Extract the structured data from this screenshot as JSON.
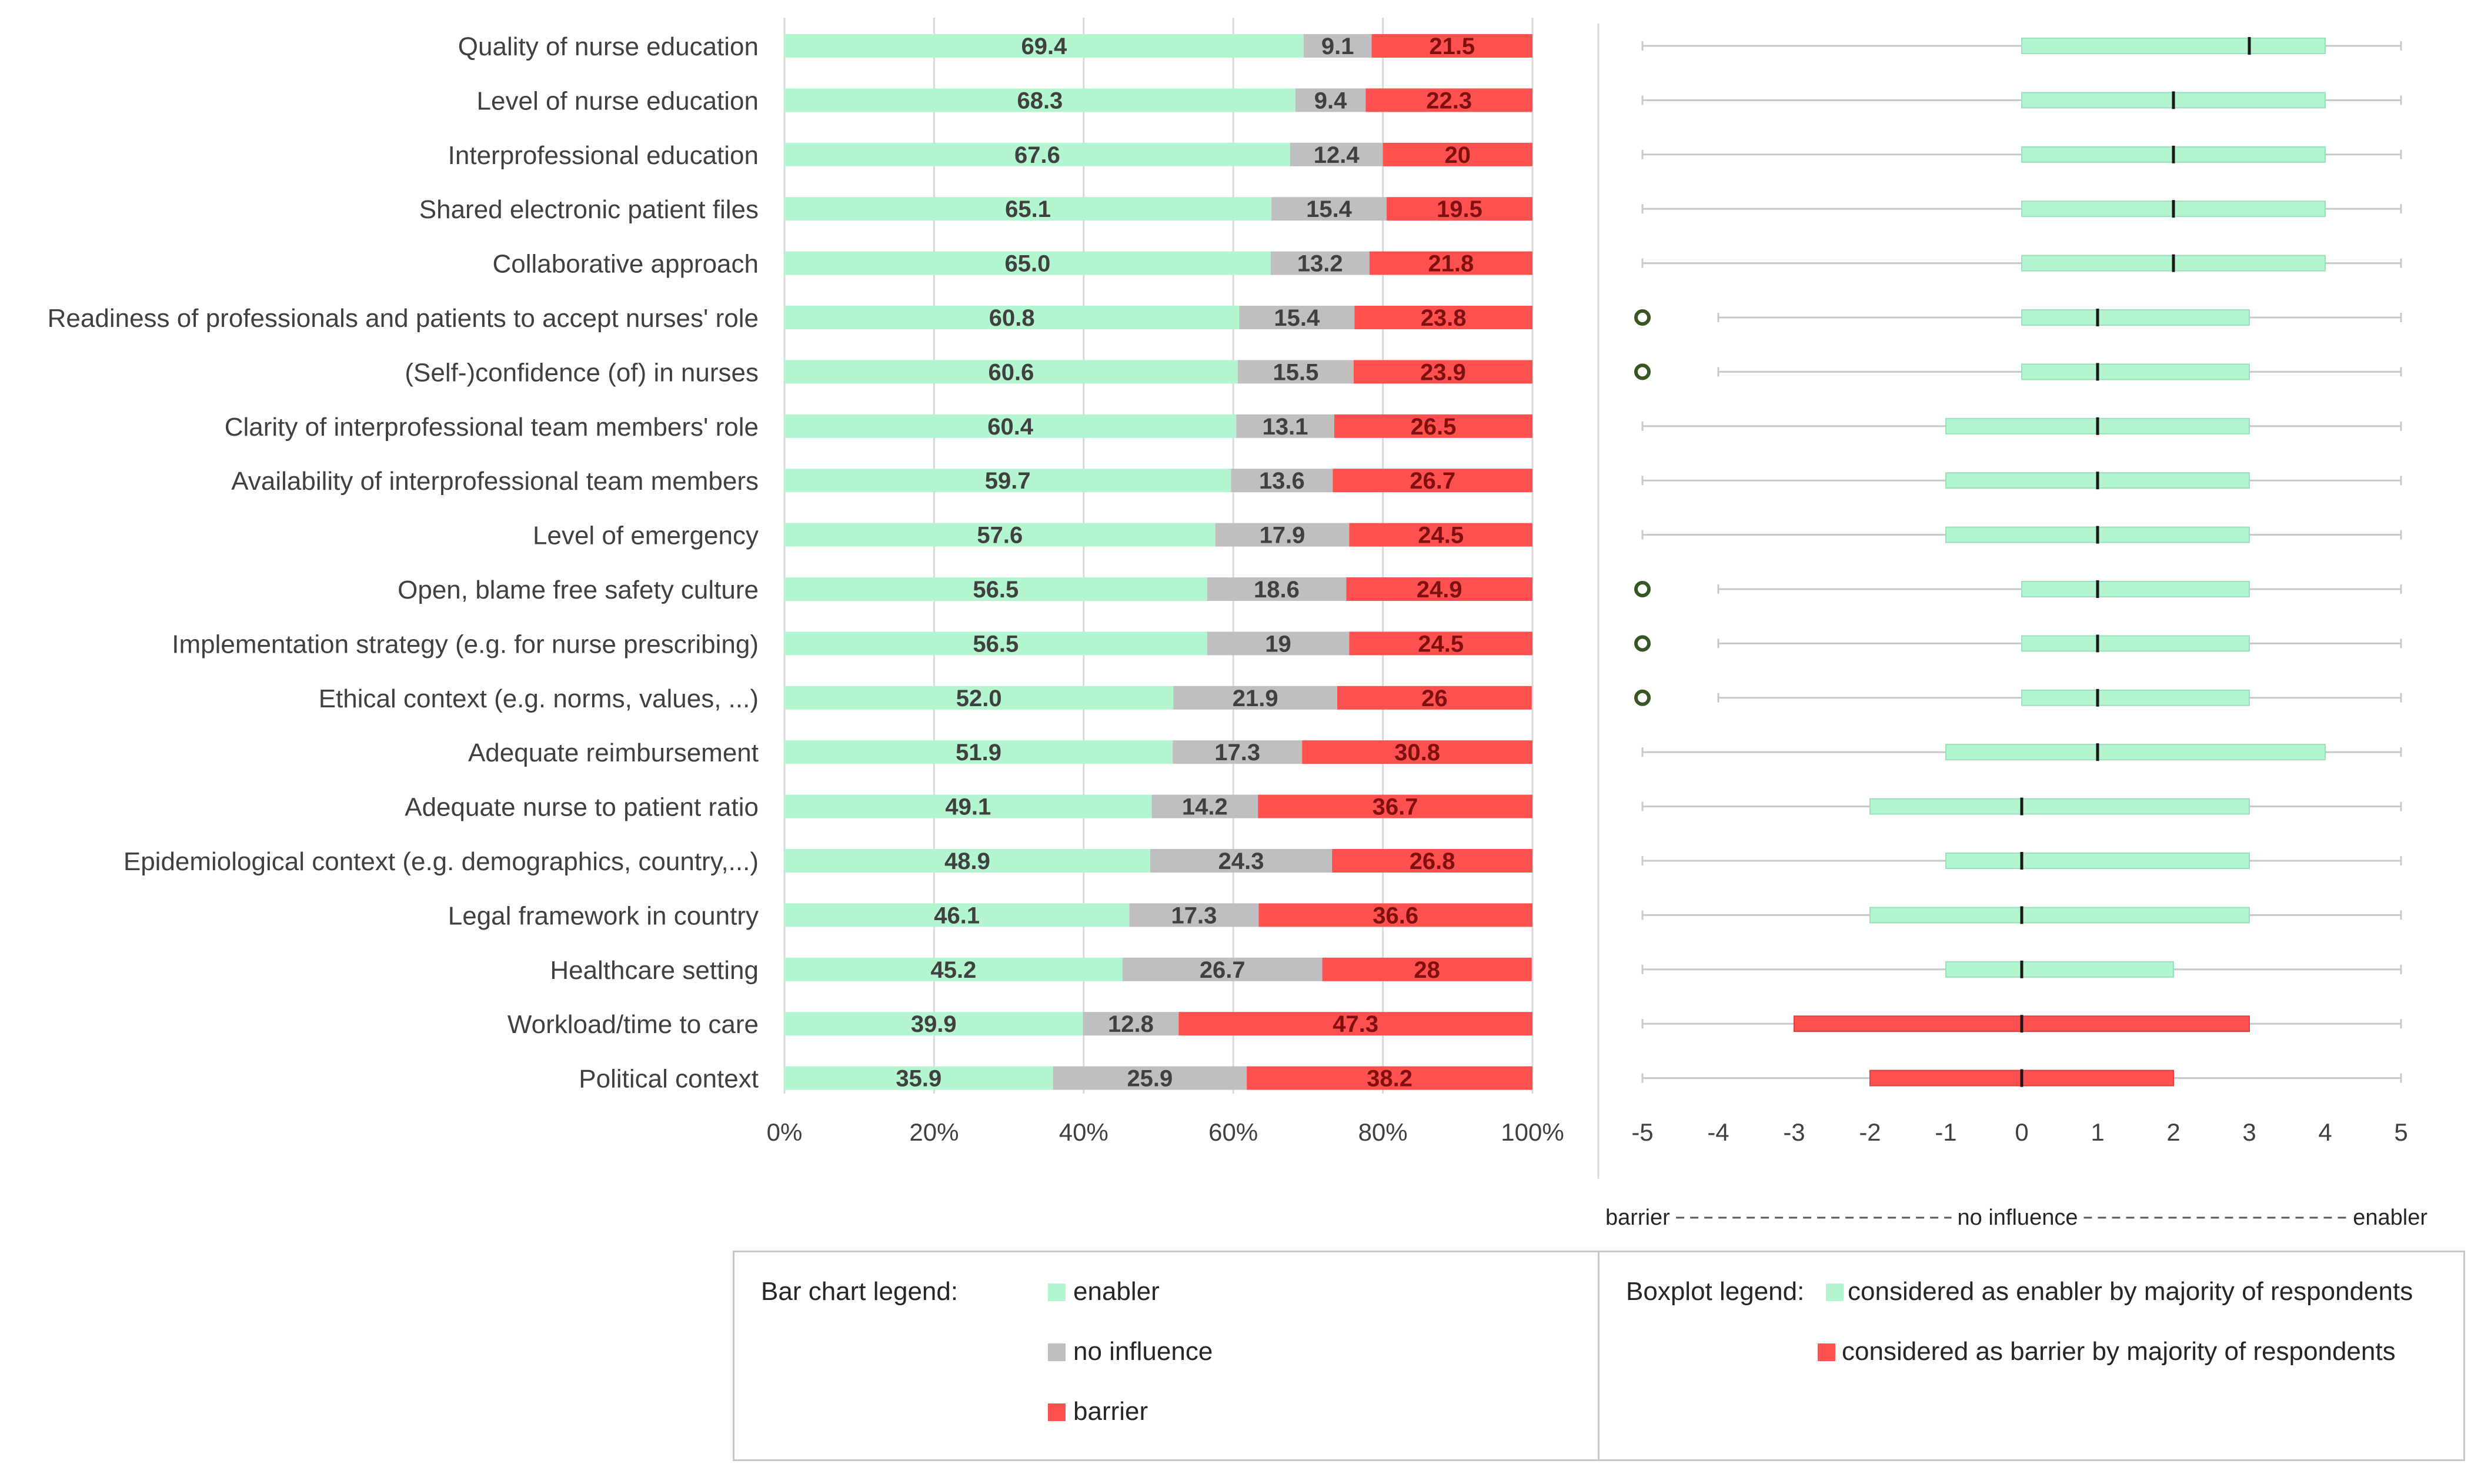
{
  "chart_data": [
    {
      "type": "bar",
      "stacked": true,
      "orientation": "horizontal",
      "categories": [
        "Quality of nurse education",
        "Level of nurse education",
        "Interprofessional education",
        "Shared electronic patient files",
        "Collaborative approach",
        "Readiness of professionals and patients to accept nurses' role",
        "(Self-)confidence (of) in nurses",
        "Clarity of interprofessional team members' role",
        "Availability of interprofessional team members",
        "Level of emergency",
        "Open, blame free safety culture",
        "Implementation strategy (e.g. for nurse prescribing)",
        "Ethical context (e.g. norms, values, ...)",
        "Adequate reimbursement",
        "Adequate nurse to patient ratio",
        "Epidemiological context (e.g. demographics, country,...)",
        "Legal framework in country",
        "Healthcare setting",
        "Workload/time to care",
        "Political context"
      ],
      "series": [
        {
          "name": "enabler",
          "color": "#b3f5cf",
          "values": [
            69.4,
            68.3,
            67.6,
            65.1,
            65.0,
            60.8,
            60.6,
            60.4,
            59.7,
            57.6,
            56.5,
            56.5,
            52.0,
            51.9,
            49.1,
            48.9,
            46.1,
            45.2,
            39.9,
            35.9
          ],
          "labels": [
            "69.4",
            "68.3",
            "67.6",
            "65.1",
            "65.0",
            "60.8",
            "60.6",
            "60.4",
            "59.7",
            "57.6",
            "56.5",
            "56.5",
            "52.0",
            "51.9",
            "49.1",
            "48.9",
            "46.1",
            "45.2",
            "39.9",
            "35.9"
          ]
        },
        {
          "name": "no influence",
          "color": "#bfbfbf",
          "values": [
            9.1,
            9.4,
            12.4,
            15.4,
            13.2,
            15.4,
            15.5,
            13.1,
            13.6,
            17.9,
            18.6,
            19,
            21.9,
            17.3,
            14.2,
            24.3,
            17.3,
            26.7,
            12.8,
            25.9
          ],
          "labels": [
            "9.1",
            "9.4",
            "12.4",
            "15.4",
            "13.2",
            "15.4",
            "15.5",
            "13.1",
            "13.6",
            "17.9",
            "18.6",
            "19",
            "21.9",
            "17.3",
            "14.2",
            "24.3",
            "17.3",
            "26.7",
            "12.8",
            "25.9"
          ]
        },
        {
          "name": "barrier",
          "color": "#ff5050",
          "values": [
            21.5,
            22.3,
            20,
            19.5,
            21.8,
            23.8,
            23.9,
            26.5,
            26.7,
            24.5,
            24.9,
            24.5,
            26,
            30.8,
            36.7,
            26.8,
            36.6,
            28,
            47.3,
            38.2
          ],
          "labels": [
            "21.5",
            "22.3",
            "20",
            "19.5",
            "21.8",
            "23.8",
            "23.9",
            "26.5",
            "26.7",
            "24.5",
            "24.9",
            "24.5",
            "26",
            "30.8",
            "36.7",
            "26.8",
            "36.6",
            "28",
            "47.3",
            "38.2"
          ]
        }
      ],
      "xlim": [
        0,
        100
      ],
      "xticks": [
        "0%",
        "20%",
        "40%",
        "60%",
        "80%",
        "100%"
      ],
      "grid": true
    },
    {
      "type": "boxplot",
      "orientation": "horizontal",
      "xlim": [
        -5,
        5
      ],
      "xticks": [
        "-5",
        "-4",
        "-3",
        "-2",
        "-1",
        "0",
        "1",
        "2",
        "3",
        "4",
        "5"
      ],
      "scale_caption": {
        "left": "barrier",
        "middle": "no influence",
        "right": "enabler"
      },
      "boxes": [
        {
          "whisker_low": -5,
          "q1": 0,
          "median": 3,
          "q3": 4,
          "whisker_high": 5,
          "outliers": [],
          "class": "enabler"
        },
        {
          "whisker_low": -5,
          "q1": 0,
          "median": 2,
          "q3": 4,
          "whisker_high": 5,
          "outliers": [],
          "class": "enabler"
        },
        {
          "whisker_low": -5,
          "q1": 0,
          "median": 2,
          "q3": 4,
          "whisker_high": 5,
          "outliers": [],
          "class": "enabler"
        },
        {
          "whisker_low": -5,
          "q1": 0,
          "median": 2,
          "q3": 4,
          "whisker_high": 5,
          "outliers": [],
          "class": "enabler"
        },
        {
          "whisker_low": -5,
          "q1": 0,
          "median": 2,
          "q3": 4,
          "whisker_high": 5,
          "outliers": [],
          "class": "enabler"
        },
        {
          "whisker_low": -4,
          "q1": 0,
          "median": 1,
          "q3": 3,
          "whisker_high": 5,
          "outliers": [
            -5
          ],
          "class": "enabler"
        },
        {
          "whisker_low": -4,
          "q1": 0,
          "median": 1,
          "q3": 3,
          "whisker_high": 5,
          "outliers": [
            -5
          ],
          "class": "enabler"
        },
        {
          "whisker_low": -5,
          "q1": -1,
          "median": 1,
          "q3": 3,
          "whisker_high": 5,
          "outliers": [],
          "class": "enabler"
        },
        {
          "whisker_low": -5,
          "q1": -1,
          "median": 1,
          "q3": 3,
          "whisker_high": 5,
          "outliers": [],
          "class": "enabler"
        },
        {
          "whisker_low": -5,
          "q1": -1,
          "median": 1,
          "q3": 3,
          "whisker_high": 5,
          "outliers": [],
          "class": "enabler"
        },
        {
          "whisker_low": -4,
          "q1": 0,
          "median": 1,
          "q3": 3,
          "whisker_high": 5,
          "outliers": [
            -5
          ],
          "class": "enabler"
        },
        {
          "whisker_low": -4,
          "q1": 0,
          "median": 1,
          "q3": 3,
          "whisker_high": 5,
          "outliers": [
            -5
          ],
          "class": "enabler"
        },
        {
          "whisker_low": -4,
          "q1": 0,
          "median": 1,
          "q3": 3,
          "whisker_high": 5,
          "outliers": [
            -5
          ],
          "class": "enabler"
        },
        {
          "whisker_low": -5,
          "q1": -1,
          "median": 1,
          "q3": 4,
          "whisker_high": 5,
          "outliers": [],
          "class": "enabler"
        },
        {
          "whisker_low": -5,
          "q1": -2,
          "median": 0,
          "q3": 3,
          "whisker_high": 5,
          "outliers": [],
          "class": "enabler"
        },
        {
          "whisker_low": -5,
          "q1": -1,
          "median": 0,
          "q3": 3,
          "whisker_high": 5,
          "outliers": [],
          "class": "enabler"
        },
        {
          "whisker_low": -5,
          "q1": -2,
          "median": 0,
          "q3": 3,
          "whisker_high": 5,
          "outliers": [],
          "class": "enabler"
        },
        {
          "whisker_low": -5,
          "q1": -1,
          "median": 0,
          "q3": 2,
          "whisker_high": 5,
          "outliers": [],
          "class": "enabler"
        },
        {
          "whisker_low": -5,
          "q1": -3,
          "median": 0,
          "q3": 3,
          "whisker_high": 5,
          "outliers": [],
          "class": "barrier"
        },
        {
          "whisker_low": -5,
          "q1": -2,
          "median": 0,
          "q3": 2,
          "whisker_high": 5,
          "outliers": [],
          "class": "barrier"
        }
      ]
    }
  ],
  "legend": {
    "bar_title": "Bar chart legend:",
    "bar_items": [
      {
        "label": "enabler",
        "color": "#b3f5cf"
      },
      {
        "label": "no influence",
        "color": "#bfbfbf"
      },
      {
        "label": "barrier",
        "color": "#ff5050"
      }
    ],
    "box_title": "Boxplot legend:",
    "box_items": [
      {
        "label": "considered as enabler by majority of respondents",
        "color": "#b3f5cf"
      },
      {
        "label": "considered as barrier by majority of respondents",
        "color": "#ff5050"
      }
    ]
  },
  "colors": {
    "enabler": "#b3f5cf",
    "no_influence": "#bfbfbf",
    "barrier": "#ff5050",
    "grid": "#d9d9d9",
    "whisker": "#c8c8c8",
    "outlier": "#375623"
  }
}
